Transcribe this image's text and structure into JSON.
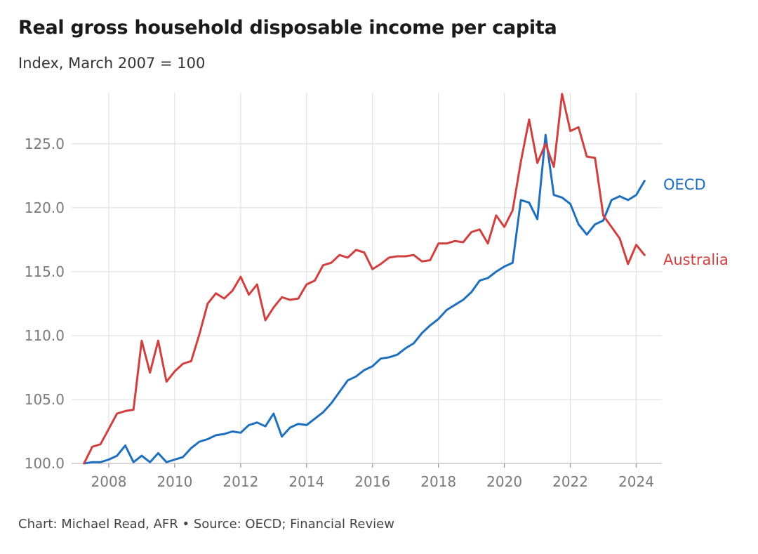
{
  "chart_data": {
    "type": "line",
    "title": "Real gross household disposable income per capita",
    "subtitle": "Index, March 2007 = 100",
    "source": "Chart: Michael Read, AFR • Source: OECD; Financial Review",
    "xlabel": "",
    "ylabel": "",
    "xlim": [
      2007.0,
      2024.5
    ],
    "ylim": [
      100,
      129
    ],
    "x_ticks": [
      2008,
      2010,
      2012,
      2014,
      2016,
      2018,
      2020,
      2022,
      2024
    ],
    "y_ticks": [
      100,
      105,
      110,
      115,
      120,
      125
    ],
    "y_tick_labels": [
      "100.0",
      "105.0",
      "110.0",
      "115.0",
      "120.0",
      "125.0"
    ],
    "grid": true,
    "x": [
      2007.25,
      2007.5,
      2007.75,
      2008.0,
      2008.25,
      2008.5,
      2008.75,
      2009.0,
      2009.25,
      2009.5,
      2009.75,
      2010.0,
      2010.25,
      2010.5,
      2010.75,
      2011.0,
      2011.25,
      2011.5,
      2011.75,
      2012.0,
      2012.25,
      2012.5,
      2012.75,
      2013.0,
      2013.25,
      2013.5,
      2013.75,
      2014.0,
      2014.25,
      2014.5,
      2014.75,
      2015.0,
      2015.25,
      2015.5,
      2015.75,
      2016.0,
      2016.25,
      2016.5,
      2016.75,
      2017.0,
      2017.25,
      2017.5,
      2017.75,
      2018.0,
      2018.25,
      2018.5,
      2018.75,
      2019.0,
      2019.25,
      2019.5,
      2019.75,
      2020.0,
      2020.25,
      2020.5,
      2020.75,
      2021.0,
      2021.25,
      2021.5,
      2021.75,
      2022.0,
      2022.25,
      2022.5,
      2022.75,
      2023.0,
      2023.25,
      2023.5,
      2023.75,
      2024.0,
      2024.25
    ],
    "series": [
      {
        "name": "Australia",
        "color": "#d13f3f",
        "values": [
          100.0,
          101.3,
          101.5,
          102.7,
          103.9,
          104.1,
          104.2,
          109.6,
          107.1,
          109.6,
          106.4,
          107.2,
          107.8,
          108.0,
          110.1,
          112.5,
          113.3,
          112.9,
          113.5,
          114.6,
          113.2,
          114.0,
          111.2,
          112.2,
          113.0,
          112.8,
          112.9,
          114.0,
          114.3,
          115.5,
          115.7,
          116.3,
          116.1,
          116.7,
          116.5,
          115.2,
          115.6,
          116.1,
          116.2,
          116.2,
          116.3,
          115.8,
          115.9,
          117.2,
          117.2,
          117.4,
          117.3,
          118.1,
          118.3,
          117.2,
          119.4,
          118.5,
          119.8,
          123.6,
          126.9,
          123.5,
          125.0,
          123.2,
          128.9,
          126.0,
          126.3,
          124.0,
          123.9,
          119.4,
          118.5,
          117.6,
          115.6,
          117.1,
          116.3
        ]
      },
      {
        "name": "OECD",
        "color": "#1f6fbf",
        "values": [
          100.0,
          100.1,
          100.1,
          100.3,
          100.6,
          101.4,
          100.1,
          100.6,
          100.1,
          100.8,
          100.1,
          100.3,
          100.5,
          101.2,
          101.7,
          101.9,
          102.2,
          102.3,
          102.5,
          102.4,
          103.0,
          103.2,
          102.9,
          103.9,
          102.1,
          102.8,
          103.1,
          103.0,
          103.5,
          104.0,
          104.7,
          105.6,
          106.5,
          106.8,
          107.3,
          107.6,
          108.2,
          108.3,
          108.5,
          109.0,
          109.4,
          110.2,
          110.8,
          111.3,
          112.0,
          112.4,
          112.8,
          113.4,
          114.3,
          114.5,
          115.0,
          115.4,
          115.7,
          120.6,
          120.4,
          119.1,
          125.7,
          121.0,
          120.8,
          120.3,
          118.7,
          117.9,
          118.7,
          119.0,
          120.6,
          120.9,
          120.6,
          121.0,
          122.1
        ]
      }
    ]
  }
}
